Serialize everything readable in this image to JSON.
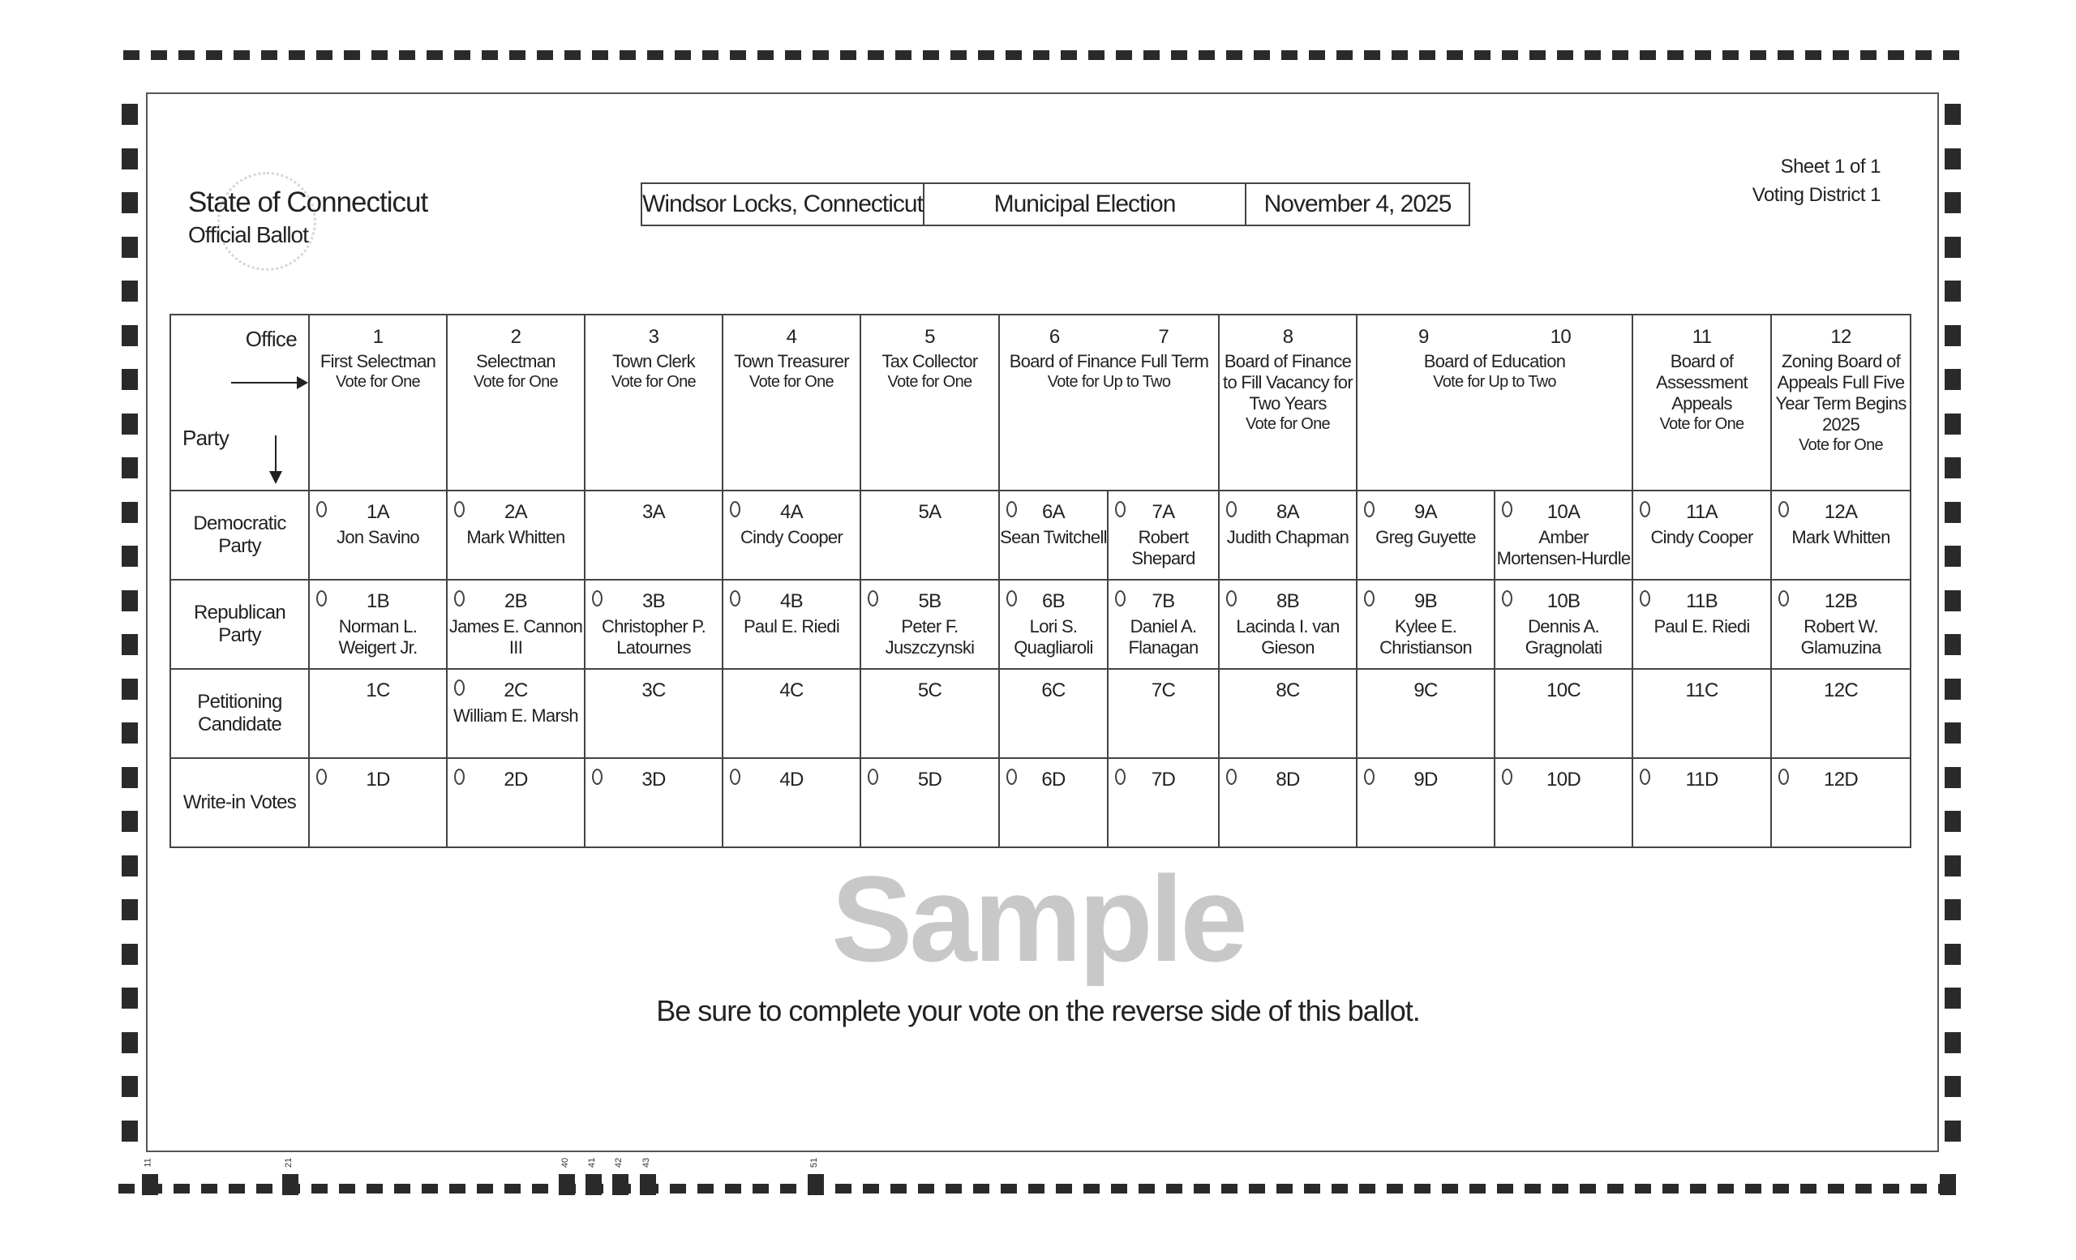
{
  "header": {
    "state": "State of Connecticut",
    "ballot_type": "Official Ballot",
    "town": "Windsor Locks, Connecticut",
    "election": "Municipal Election",
    "date": "November 4, 2025",
    "sheet": "Sheet 1 of 1",
    "district": "Voting District 1"
  },
  "table": {
    "office_label": "Office",
    "party_label": "Party",
    "offices": [
      {
        "num": "1",
        "title": "First Selectman",
        "vote": "Vote for One"
      },
      {
        "num": "2",
        "title": "Selectman",
        "vote": "Vote for One"
      },
      {
        "num": "3",
        "title": "Town Clerk",
        "vote": "Vote for One"
      },
      {
        "num": "4",
        "title": "Town Treasurer",
        "vote": "Vote for One"
      },
      {
        "num": "5",
        "title": "Tax Collector",
        "vote": "Vote for One"
      },
      {
        "num": "6",
        "num2": "7",
        "title": "Board of Finance Full Term",
        "vote": "Vote for Up to Two"
      },
      {
        "num": "8",
        "title": "Board of Finance to Fill Vacancy for Two Years",
        "vote": "Vote for One"
      },
      {
        "num": "9",
        "num2": "10",
        "title": "Board of Education",
        "vote": "Vote for Up to Two"
      },
      {
        "num": "11",
        "title": "Board of Assessment Appeals",
        "vote": "Vote for One"
      },
      {
        "num": "12",
        "title": "Zoning Board of Appeals Full Five Year Term Begins 2025",
        "vote": "Vote for One"
      }
    ],
    "rows": [
      {
        "label": "Democratic Party",
        "cells": [
          {
            "code": "1A",
            "name": "Jon Savino",
            "oval": true
          },
          {
            "code": "2A",
            "name": "Mark Whitten",
            "oval": true
          },
          {
            "code": "3A",
            "name": "",
            "oval": false
          },
          {
            "code": "4A",
            "name": "Cindy Cooper",
            "oval": true
          },
          {
            "code": "5A",
            "name": "",
            "oval": false
          },
          {
            "code": "6A",
            "name": "Sean Twitchell",
            "oval": true
          },
          {
            "code": "7A",
            "name": "Robert Shepard",
            "oval": true
          },
          {
            "code": "8A",
            "name": "Judith Chapman",
            "oval": true
          },
          {
            "code": "9A",
            "name": "Greg Guyette",
            "oval": true
          },
          {
            "code": "10A",
            "name": "Amber Mortensen-Hurdle",
            "oval": true
          },
          {
            "code": "11A",
            "name": "Cindy Cooper",
            "oval": true
          },
          {
            "code": "12A",
            "name": "Mark Whitten",
            "oval": true
          }
        ]
      },
      {
        "label": "Republican Party",
        "cells": [
          {
            "code": "1B",
            "name": "Norman L. Weigert Jr.",
            "oval": true
          },
          {
            "code": "2B",
            "name": "James E. Cannon III",
            "oval": true
          },
          {
            "code": "3B",
            "name": "Christopher P. Latournes",
            "oval": true
          },
          {
            "code": "4B",
            "name": "Paul E. Riedi",
            "oval": true
          },
          {
            "code": "5B",
            "name": "Peter F. Juszczynski",
            "oval": true
          },
          {
            "code": "6B",
            "name": "Lori S. Quagliaroli",
            "oval": true
          },
          {
            "code": "7B",
            "name": "Daniel A. Flanagan",
            "oval": true
          },
          {
            "code": "8B",
            "name": "Lacinda I. van Gieson",
            "oval": true
          },
          {
            "code": "9B",
            "name": "Kylee E. Christianson",
            "oval": true
          },
          {
            "code": "10B",
            "name": "Dennis A. Gragnolati",
            "oval": true
          },
          {
            "code": "11B",
            "name": "Paul E. Riedi",
            "oval": true
          },
          {
            "code": "12B",
            "name": "Robert W. Glamuzina",
            "oval": true
          }
        ]
      },
      {
        "label": "Petitioning Candidate",
        "cells": [
          {
            "code": "1C",
            "name": "",
            "oval": false
          },
          {
            "code": "2C",
            "name": "William E. Marsh",
            "oval": true
          },
          {
            "code": "3C",
            "name": "",
            "oval": false
          },
          {
            "code": "4C",
            "name": "",
            "oval": false
          },
          {
            "code": "5C",
            "name": "",
            "oval": false
          },
          {
            "code": "6C",
            "name": "",
            "oval": false
          },
          {
            "code": "7C",
            "name": "",
            "oval": false
          },
          {
            "code": "8C",
            "name": "",
            "oval": false
          },
          {
            "code": "9C",
            "name": "",
            "oval": false
          },
          {
            "code": "10C",
            "name": "",
            "oval": false
          },
          {
            "code": "11C",
            "name": "",
            "oval": false
          },
          {
            "code": "12C",
            "name": "",
            "oval": false
          }
        ]
      },
      {
        "label": "Write-in Votes",
        "cells": [
          {
            "code": "1D",
            "name": "",
            "oval": true
          },
          {
            "code": "2D",
            "name": "",
            "oval": true
          },
          {
            "code": "3D",
            "name": "",
            "oval": true
          },
          {
            "code": "4D",
            "name": "",
            "oval": true
          },
          {
            "code": "5D",
            "name": "",
            "oval": true
          },
          {
            "code": "6D",
            "name": "",
            "oval": true
          },
          {
            "code": "7D",
            "name": "",
            "oval": true
          },
          {
            "code": "8D",
            "name": "",
            "oval": true
          },
          {
            "code": "9D",
            "name": "",
            "oval": true
          },
          {
            "code": "10D",
            "name": "",
            "oval": true
          },
          {
            "code": "11D",
            "name": "",
            "oval": true
          },
          {
            "code": "12D",
            "name": "",
            "oval": true
          }
        ]
      }
    ]
  },
  "footer": "Be sure to complete your vote on the reverse side of this ballot.",
  "watermark": "Sample",
  "bottom_marks": [
    "11",
    "21",
    "40",
    "41",
    "42",
    "43",
    "51"
  ]
}
